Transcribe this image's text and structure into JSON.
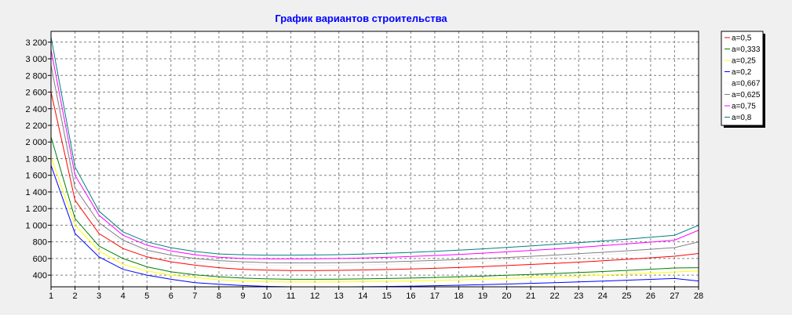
{
  "colors": {
    "background": "#f0f0f0",
    "plot_background": "#ffffff",
    "grid": "#808080",
    "title": "#0000ff"
  },
  "chart_data": {
    "type": "line",
    "title": "График вариантов строительства",
    "xlabel": "",
    "ylabel": "",
    "x": [
      1,
      2,
      3,
      4,
      5,
      6,
      7,
      8,
      9,
      10,
      11,
      12,
      13,
      14,
      15,
      16,
      17,
      18,
      19,
      20,
      21,
      22,
      23,
      24,
      25,
      26,
      27,
      28
    ],
    "x_ticks": [
      "1",
      "2",
      "3",
      "4",
      "5",
      "6",
      "7",
      "8",
      "9",
      "10",
      "11",
      "12",
      "13",
      "14",
      "15",
      "16",
      "17",
      "18",
      "19",
      "20",
      "21",
      "22",
      "23",
      "24",
      "25",
      "26",
      "27",
      "28"
    ],
    "xlim": [
      1,
      28
    ],
    "y_ticks": [
      400,
      600,
      800,
      1000,
      1200,
      1400,
      1600,
      1800,
      2000,
      2200,
      2400,
      2600,
      2800,
      3000,
      3200
    ],
    "y_tick_labels": [
      "400",
      "600",
      "800",
      "1 000",
      "1 200",
      "1 400",
      "1 600",
      "1 800",
      "2 000",
      "2 200",
      "2 400",
      "2 600",
      "2 800",
      "3 000",
      "3 200"
    ],
    "ylim": [
      260,
      3330
    ],
    "grid": true,
    "legend_position": "right",
    "series": [
      {
        "name": "a=0,5",
        "color": "#ff0000",
        "values": [
          2600,
          1300,
          900,
          720,
          620,
          560,
          520,
          490,
          470,
          460,
          455,
          455,
          458,
          462,
          467,
          474,
          482,
          492,
          503,
          515,
          528,
          542,
          557,
          573,
          590,
          608,
          627,
          660
        ]
      },
      {
        "name": "a=0,333",
        "color": "#008000",
        "values": [
          2060,
          1080,
          750,
          600,
          500,
          440,
          405,
          380,
          365,
          355,
          350,
          350,
          352,
          355,
          360,
          365,
          372,
          380,
          388,
          398,
          408,
          419,
          431,
          444,
          457,
          471,
          486,
          490
        ]
      },
      {
        "name": "a=0,25",
        "color": "#ffff00",
        "values": [
          1820,
          1000,
          690,
          530,
          450,
          400,
          370,
          345,
          330,
          320,
          317,
          317,
          318,
          321,
          325,
          330,
          336,
          343,
          351,
          360,
          369,
          379,
          390,
          401,
          413,
          425,
          438,
          450
        ]
      },
      {
        "name": "a=0,2",
        "color": "#0000ff",
        "values": [
          1720,
          900,
          620,
          470,
          400,
          350,
          310,
          290,
          275,
          265,
          260,
          258,
          259,
          261,
          264,
          268,
          273,
          279,
          286,
          293,
          301,
          310,
          319,
          329,
          339,
          349,
          360,
          330
        ]
      },
      {
        "name": "a=0,667",
        "color": "#f0f0f0",
        "values": [
          2830,
          1400,
          980,
          790,
          680,
          610,
          570,
          545,
          530,
          520,
          517,
          517,
          519,
          523,
          529,
          537,
          546,
          557,
          569,
          582,
          596,
          611,
          627,
          644,
          662,
          681,
          701,
          720
        ]
      },
      {
        "name": "a=0,625",
        "color": "#808080",
        "values": [
          2920,
          1450,
          1030,
          820,
          700,
          640,
          600,
          575,
          560,
          550,
          547,
          547,
          549,
          553,
          559,
          567,
          576,
          587,
          599,
          612,
          626,
          641,
          657,
          674,
          692,
          711,
          731,
          800
        ]
      },
      {
        "name": "a=0,75",
        "color": "#ff00ff",
        "values": [
          3110,
          1600,
          1120,
          880,
          760,
          690,
          645,
          615,
          600,
          595,
          595,
          596,
          600,
          606,
          614,
          624,
          636,
          649,
          664,
          680,
          697,
          715,
          734,
          754,
          775,
          797,
          820,
          940
        ]
      },
      {
        "name": "a=0,8",
        "color": "#008080",
        "values": [
          3260,
          1700,
          1170,
          920,
          800,
          730,
          685,
          655,
          645,
          640,
          640,
          642,
          646,
          653,
          662,
          673,
          686,
          700,
          716,
          733,
          751,
          770,
          790,
          811,
          833,
          856,
          880,
          1000
        ]
      }
    ]
  }
}
